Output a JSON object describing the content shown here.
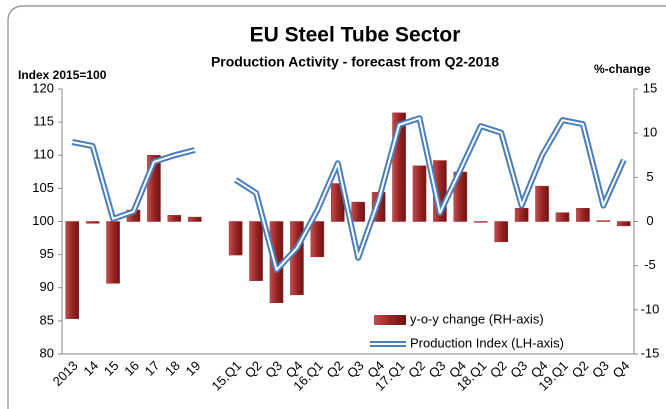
{
  "chart_data": {
    "type": "combo",
    "title": "EU Steel Tube Sector",
    "subtitle": "Production  Activity - forecast from Q2-2018",
    "y_label": "Index 2015=100",
    "y2_label": "%-change",
    "categories": [
      "2013",
      "14",
      "15",
      "16",
      "17",
      "18",
      "19",
      null,
      "15.Q1",
      "Q2",
      "Q3",
      "Q4",
      "16.Q1",
      "Q2",
      "Q3",
      "Q4",
      "17.Q1",
      "Q2",
      "Q3",
      "Q4",
      "18.Q1",
      "Q2",
      "Q3",
      "Q4",
      "19.Q1",
      "Q2",
      "Q3",
      "Q4"
    ],
    "series": [
      {
        "name": "y-o-y change (RH-axis)",
        "type": "bar",
        "axis": "y2",
        "color": "#a02b2b",
        "values": [
          -11,
          -0.2,
          -7,
          1.3,
          7.5,
          0.7,
          0.5,
          null,
          -3.8,
          -6.7,
          -9.2,
          -8.3,
          -4,
          4.3,
          2.2,
          3.3,
          12.3,
          6.3,
          6.9,
          5.6,
          -0.1,
          -2.3,
          1.5,
          4,
          1,
          1.5,
          0.1,
          -0.5
        ]
      },
      {
        "name": "Production Index (LH-axis)",
        "type": "line",
        "color": "#4a7ebb",
        "values": [
          112,
          111.4,
          100.4,
          101.5,
          109,
          110,
          110.8,
          null,
          106.3,
          104.3,
          92.7,
          96,
          101.7,
          108.8,
          94.5,
          103.2,
          114.6,
          115.6,
          101.3,
          107.8,
          114.4,
          113.4,
          102.4,
          110,
          115.3,
          114.7,
          102.4,
          109.3
        ]
      }
    ],
    "ylim": [
      80,
      120
    ],
    "yticks": [
      80,
      85,
      90,
      95,
      100,
      105,
      110,
      115,
      120
    ],
    "y2lim": [
      -15,
      15
    ],
    "y2ticks": [
      -15,
      -10,
      -5,
      0,
      5,
      10,
      15
    ],
    "legend": "lower right"
  }
}
